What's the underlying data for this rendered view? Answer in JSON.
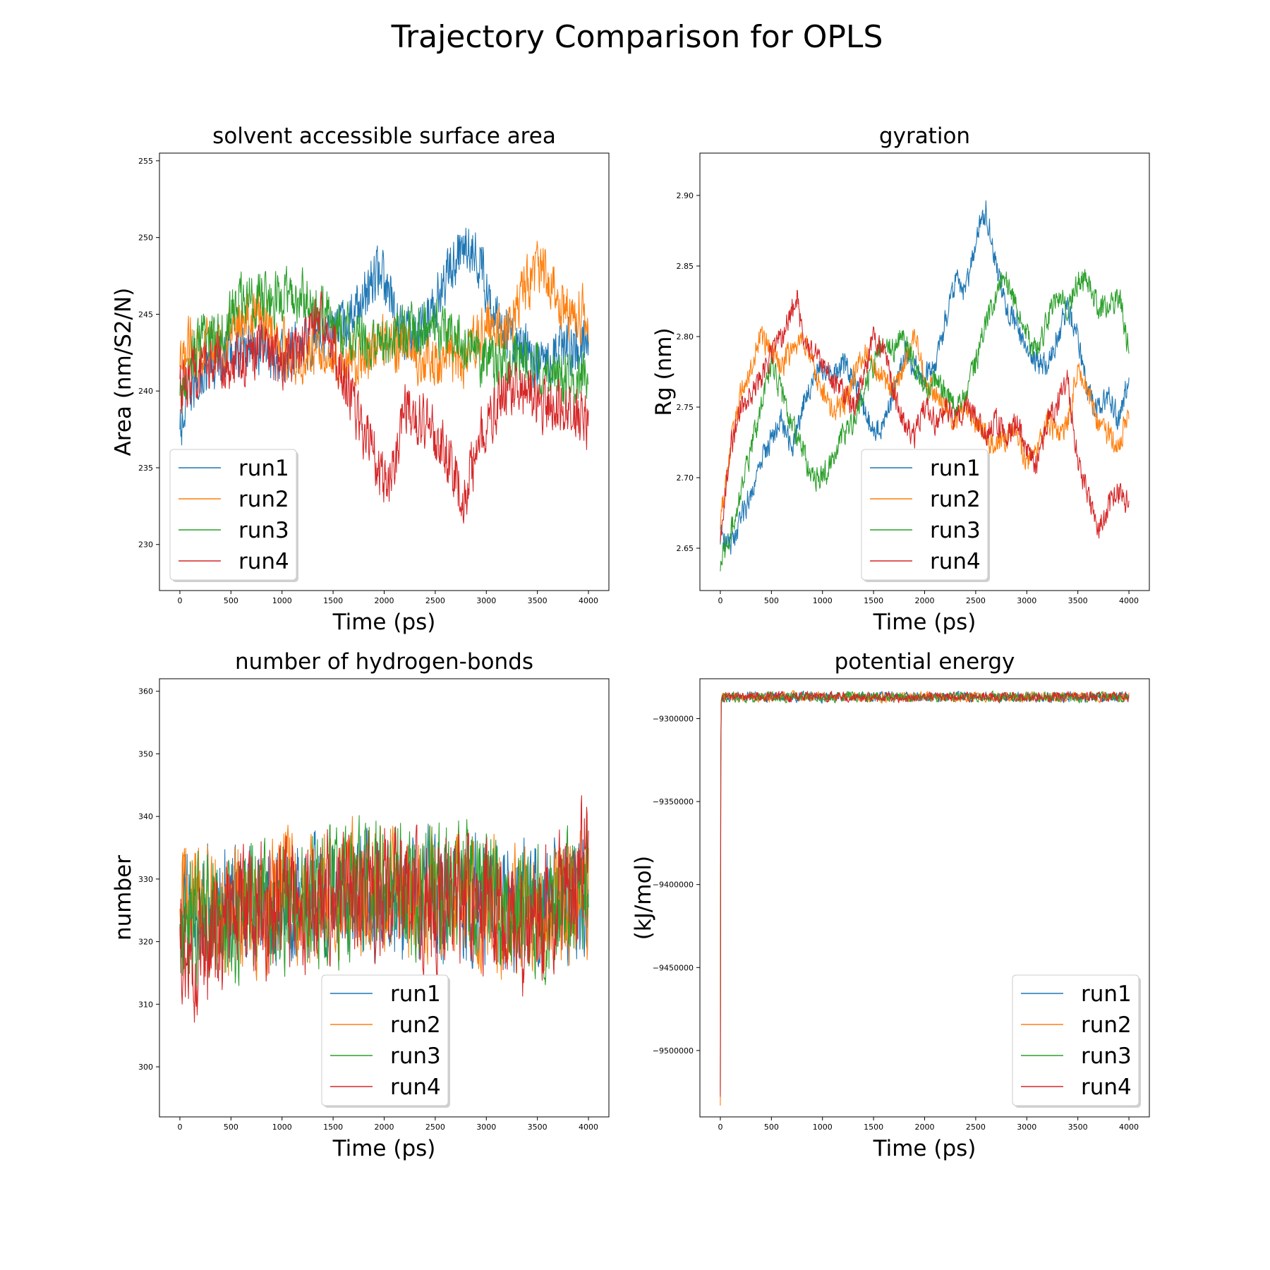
{
  "figure": {
    "title": "Trajectory Comparison for OPLS"
  },
  "colors": {
    "run1": "#1f77b4",
    "run2": "#ff7f0e",
    "run3": "#2ca02c",
    "run4": "#d62728"
  },
  "chart_data": [
    {
      "type": "line",
      "title": "solvent accessible surface area",
      "xlabel": "Time (ps)",
      "ylabel": "Area (nm/S2/N)",
      "xlim": [
        -200,
        4200
      ],
      "ylim": [
        227,
        255.5
      ],
      "xticks": [
        0,
        500,
        1000,
        1500,
        2000,
        2500,
        3000,
        3500,
        4000
      ],
      "yticks": [
        230,
        235,
        240,
        245,
        250,
        255
      ],
      "legend": "lower-left",
      "noise": 1.6,
      "series": [
        {
          "name": "run1",
          "x": [
            0,
            100,
            200,
            400,
            600,
            800,
            1000,
            1200,
            1400,
            1600,
            1800,
            1950,
            2100,
            2300,
            2500,
            2650,
            2800,
            2950,
            3100,
            3300,
            3500,
            3700,
            3900,
            4000
          ],
          "y": [
            237,
            240,
            241,
            242,
            243,
            243,
            242,
            243,
            244,
            244,
            246,
            248,
            245,
            243,
            246,
            248,
            250,
            248,
            245,
            243,
            242,
            243,
            243,
            243
          ]
        },
        {
          "name": "run2",
          "x": [
            0,
            100,
            200,
            400,
            600,
            800,
            1000,
            1200,
            1400,
            1600,
            1800,
            2000,
            2200,
            2400,
            2600,
            2800,
            3000,
            3200,
            3400,
            3550,
            3700,
            3850,
            4000
          ],
          "y": [
            241,
            243,
            243,
            243,
            245,
            245,
            243,
            242,
            243,
            242,
            242,
            243,
            243,
            242,
            242,
            242,
            244,
            244,
            247,
            248,
            246,
            245,
            245
          ]
        },
        {
          "name": "run3",
          "x": [
            0,
            100,
            200,
            400,
            600,
            800,
            1000,
            1200,
            1400,
            1600,
            1800,
            2000,
            2200,
            2400,
            2600,
            2800,
            3000,
            3200,
            3400,
            3600,
            3800,
            4000
          ],
          "y": [
            239,
            242,
            243,
            244,
            246,
            246,
            246,
            246,
            245,
            244,
            243,
            243,
            244,
            244,
            244,
            243,
            242,
            242,
            242,
            241,
            241,
            241
          ]
        },
        {
          "name": "run4",
          "x": [
            0,
            100,
            200,
            400,
            600,
            800,
            1000,
            1200,
            1400,
            1600,
            1750,
            1900,
            2000,
            2100,
            2200,
            2400,
            2600,
            2780,
            2900,
            3000,
            3200,
            3400,
            3600,
            3800,
            4000
          ],
          "y": [
            240,
            241,
            241,
            242,
            242,
            243,
            242,
            243,
            245,
            241,
            238,
            236,
            234,
            235,
            239,
            238,
            236,
            233,
            236,
            238,
            240,
            240,
            239,
            239,
            238
          ]
        }
      ]
    },
    {
      "type": "line",
      "title": "gyration",
      "xlabel": "Time (ps)",
      "ylabel": "Rg (nm)",
      "xlim": [
        -200,
        4200
      ],
      "ylim": [
        2.62,
        2.93
      ],
      "xticks": [
        0,
        500,
        1000,
        1500,
        2000,
        2500,
        3000,
        3500,
        4000
      ],
      "yticks": [
        2.65,
        2.7,
        2.75,
        2.8,
        2.85,
        2.9
      ],
      "legend": "lower-center",
      "noise": 0.008,
      "series": [
        {
          "name": "run1",
          "x": [
            0,
            100,
            200,
            300,
            400,
            500,
            600,
            700,
            800,
            900,
            1000,
            1100,
            1200,
            1300,
            1400,
            1500,
            1600,
            1700,
            1800,
            1900,
            2000,
            2100,
            2200,
            2300,
            2400,
            2500,
            2600,
            2700,
            2800,
            2900,
            3000,
            3100,
            3200,
            3300,
            3400,
            3500,
            3600,
            3700,
            3800,
            3900,
            4000
          ],
          "y": [
            2.66,
            2.65,
            2.67,
            2.69,
            2.71,
            2.73,
            2.74,
            2.72,
            2.75,
            2.77,
            2.78,
            2.77,
            2.78,
            2.77,
            2.75,
            2.73,
            2.74,
            2.76,
            2.79,
            2.78,
            2.77,
            2.78,
            2.81,
            2.84,
            2.83,
            2.87,
            2.89,
            2.85,
            2.82,
            2.81,
            2.79,
            2.78,
            2.78,
            2.8,
            2.82,
            2.8,
            2.76,
            2.75,
            2.76,
            2.74,
            2.77
          ]
        },
        {
          "name": "run2",
          "x": [
            0,
            100,
            200,
            300,
            400,
            500,
            600,
            700,
            800,
            900,
            1000,
            1100,
            1200,
            1300,
            1400,
            1500,
            1600,
            1700,
            1800,
            1900,
            2000,
            2100,
            2200,
            2300,
            2400,
            2500,
            2600,
            2700,
            2800,
            2900,
            3000,
            3100,
            3200,
            3300,
            3400,
            3500,
            3600,
            3700,
            3800,
            3900,
            4000
          ],
          "y": [
            2.67,
            2.72,
            2.76,
            2.78,
            2.8,
            2.79,
            2.78,
            2.79,
            2.8,
            2.78,
            2.76,
            2.75,
            2.75,
            2.77,
            2.79,
            2.78,
            2.77,
            2.76,
            2.78,
            2.8,
            2.77,
            2.76,
            2.75,
            2.74,
            2.75,
            2.74,
            2.73,
            2.72,
            2.73,
            2.73,
            2.71,
            2.72,
            2.74,
            2.73,
            2.74,
            2.78,
            2.76,
            2.74,
            2.73,
            2.72,
            2.75
          ]
        },
        {
          "name": "run3",
          "x": [
            0,
            100,
            200,
            300,
            400,
            500,
            600,
            700,
            800,
            900,
            1000,
            1100,
            1200,
            1300,
            1400,
            1500,
            1600,
            1700,
            1800,
            1900,
            2000,
            2100,
            2200,
            2300,
            2400,
            2500,
            2600,
            2700,
            2800,
            2900,
            3000,
            3100,
            3200,
            3300,
            3400,
            3500,
            3600,
            3700,
            3800,
            3900,
            4000
          ],
          "y": [
            2.64,
            2.66,
            2.69,
            2.72,
            2.75,
            2.78,
            2.76,
            2.74,
            2.72,
            2.7,
            2.7,
            2.71,
            2.73,
            2.74,
            2.76,
            2.78,
            2.8,
            2.79,
            2.8,
            2.78,
            2.76,
            2.77,
            2.76,
            2.75,
            2.76,
            2.78,
            2.81,
            2.83,
            2.84,
            2.82,
            2.8,
            2.79,
            2.81,
            2.83,
            2.82,
            2.84,
            2.84,
            2.82,
            2.82,
            2.83,
            2.79
          ]
        },
        {
          "name": "run4",
          "x": [
            0,
            100,
            200,
            300,
            400,
            500,
            600,
            700,
            750,
            800,
            900,
            1000,
            1100,
            1200,
            1300,
            1400,
            1500,
            1600,
            1700,
            1800,
            1900,
            2000,
            2100,
            2200,
            2300,
            2400,
            2500,
            2600,
            2700,
            2800,
            2900,
            3000,
            3100,
            3200,
            3300,
            3400,
            3500,
            3600,
            3700,
            3800,
            3900,
            4000
          ],
          "y": [
            2.66,
            2.72,
            2.75,
            2.76,
            2.77,
            2.79,
            2.8,
            2.82,
            2.83,
            2.8,
            2.79,
            2.78,
            2.77,
            2.76,
            2.75,
            2.77,
            2.8,
            2.79,
            2.76,
            2.74,
            2.73,
            2.75,
            2.74,
            2.75,
            2.74,
            2.75,
            2.74,
            2.73,
            2.74,
            2.73,
            2.74,
            2.72,
            2.71,
            2.74,
            2.75,
            2.77,
            2.71,
            2.69,
            2.66,
            2.68,
            2.69,
            2.68
          ]
        }
      ]
    },
    {
      "type": "line",
      "title": "number of hydrogen-bonds",
      "xlabel": "Time (ps)",
      "ylabel": "number",
      "xlim": [
        -200,
        4200
      ],
      "ylim": [
        292,
        362
      ],
      "xticks": [
        0,
        500,
        1000,
        1500,
        2000,
        2500,
        3000,
        3500,
        4000
      ],
      "yticks": [
        300,
        310,
        320,
        330,
        340,
        350,
        360
      ],
      "legend": "lower-center",
      "noise": 9,
      "series": [
        {
          "name": "run1",
          "x": [
            0,
            500,
            1000,
            1500,
            2000,
            2500,
            3000,
            3500,
            4000
          ],
          "y": [
            324,
            325,
            326,
            327,
            327,
            327,
            326,
            325,
            327
          ]
        },
        {
          "name": "run2",
          "x": [
            0,
            500,
            1000,
            1500,
            2000,
            2500,
            3000,
            3500,
            4000
          ],
          "y": [
            326,
            325,
            327,
            328,
            328,
            327,
            326,
            324,
            327
          ]
        },
        {
          "name": "run3",
          "x": [
            0,
            500,
            1000,
            1500,
            2000,
            2500,
            3000,
            3500,
            4000
          ],
          "y": [
            323,
            324,
            326,
            328,
            329,
            328,
            327,
            324,
            328
          ]
        },
        {
          "name": "run4",
          "x": [
            0,
            200,
            500,
            1000,
            1500,
            2000,
            2500,
            3000,
            3300,
            3500,
            4000
          ],
          "y": [
            322,
            318,
            324,
            326,
            327,
            328,
            327,
            325,
            321,
            323,
            333
          ]
        }
      ]
    },
    {
      "type": "line",
      "title": "potential energy",
      "xlabel": "Time (ps)",
      "ylabel": "(kJ/mol)",
      "xlim": [
        -200,
        4200
      ],
      "ylim": [
        -9540000,
        -9276000
      ],
      "xticks": [
        0,
        500,
        1000,
        1500,
        2000,
        2500,
        3000,
        3500,
        4000
      ],
      "yticks": [
        -9300000,
        -9350000,
        -9400000,
        -9450000,
        -9500000
      ],
      "legend": "lower-right",
      "noise": 2600,
      "series": [
        {
          "name": "run1",
          "x": [
            0,
            5,
            10,
            500,
            1000,
            1500,
            2000,
            2500,
            3000,
            3500,
            4000
          ],
          "y": [
            -9528000,
            -9300000,
            -9287000,
            -9287000,
            -9287000,
            -9287000,
            -9287000,
            -9287000,
            -9287000,
            -9287000,
            -9287000
          ]
        },
        {
          "name": "run2",
          "x": [
            0,
            5,
            10,
            500,
            1000,
            1500,
            2000,
            2500,
            3000,
            3500,
            4000
          ],
          "y": [
            -9535000,
            -9300000,
            -9287000,
            -9287000,
            -9287000,
            -9287000,
            -9287000,
            -9287000,
            -9287000,
            -9287000,
            -9287000
          ]
        },
        {
          "name": "run3",
          "x": [
            0,
            5,
            10,
            500,
            1000,
            1500,
            2000,
            2500,
            3000,
            3500,
            4000
          ],
          "y": [
            -9525000,
            -9300000,
            -9287000,
            -9287000,
            -9287000,
            -9287000,
            -9287000,
            -9287000,
            -9287000,
            -9287000,
            -9287000
          ]
        },
        {
          "name": "run4",
          "x": [
            0,
            5,
            10,
            500,
            1000,
            1500,
            2000,
            2500,
            3000,
            3500,
            4000
          ],
          "y": [
            -9530000,
            -9300000,
            -9287000,
            -9287000,
            -9287000,
            -9287000,
            -9287000,
            -9287000,
            -9287000,
            -9287000,
            -9287000
          ]
        }
      ]
    }
  ]
}
